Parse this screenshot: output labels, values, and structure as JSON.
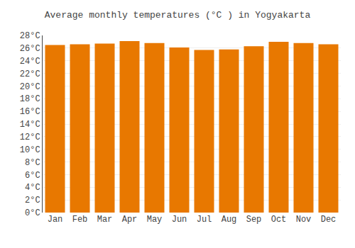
{
  "chart_data": {
    "type": "bar",
    "title": "Average monthly temperatures (°C ) in Yogyakarta",
    "categories": [
      "Jan",
      "Feb",
      "Mar",
      "Apr",
      "May",
      "Jun",
      "Jul",
      "Aug",
      "Sep",
      "Oct",
      "Nov",
      "Dec"
    ],
    "values": [
      26.5,
      26.6,
      26.7,
      27.1,
      26.8,
      26.1,
      25.7,
      25.8,
      26.3,
      27.0,
      26.8,
      26.6
    ],
    "color": "#E87800",
    "ylim": [
      0,
      28
    ],
    "yticks": [
      {
        "value": 0,
        "label": "0°C"
      },
      {
        "value": 2,
        "label": "2°C"
      },
      {
        "value": 4,
        "label": "4°C"
      },
      {
        "value": 6,
        "label": "6°C"
      },
      {
        "value": 8,
        "label": "8°C"
      },
      {
        "value": 10,
        "label": "10°C"
      },
      {
        "value": 12,
        "label": "12°C"
      },
      {
        "value": 14,
        "label": "14°C"
      },
      {
        "value": 16,
        "label": "16°C"
      },
      {
        "value": 18,
        "label": "18°C"
      },
      {
        "value": 20,
        "label": "20°C"
      },
      {
        "value": 22,
        "label": "22°C"
      },
      {
        "value": 24,
        "label": "24°C"
      },
      {
        "value": 26,
        "label": "26°C"
      },
      {
        "value": 28,
        "label": "28°C"
      }
    ],
    "grid": true
  }
}
